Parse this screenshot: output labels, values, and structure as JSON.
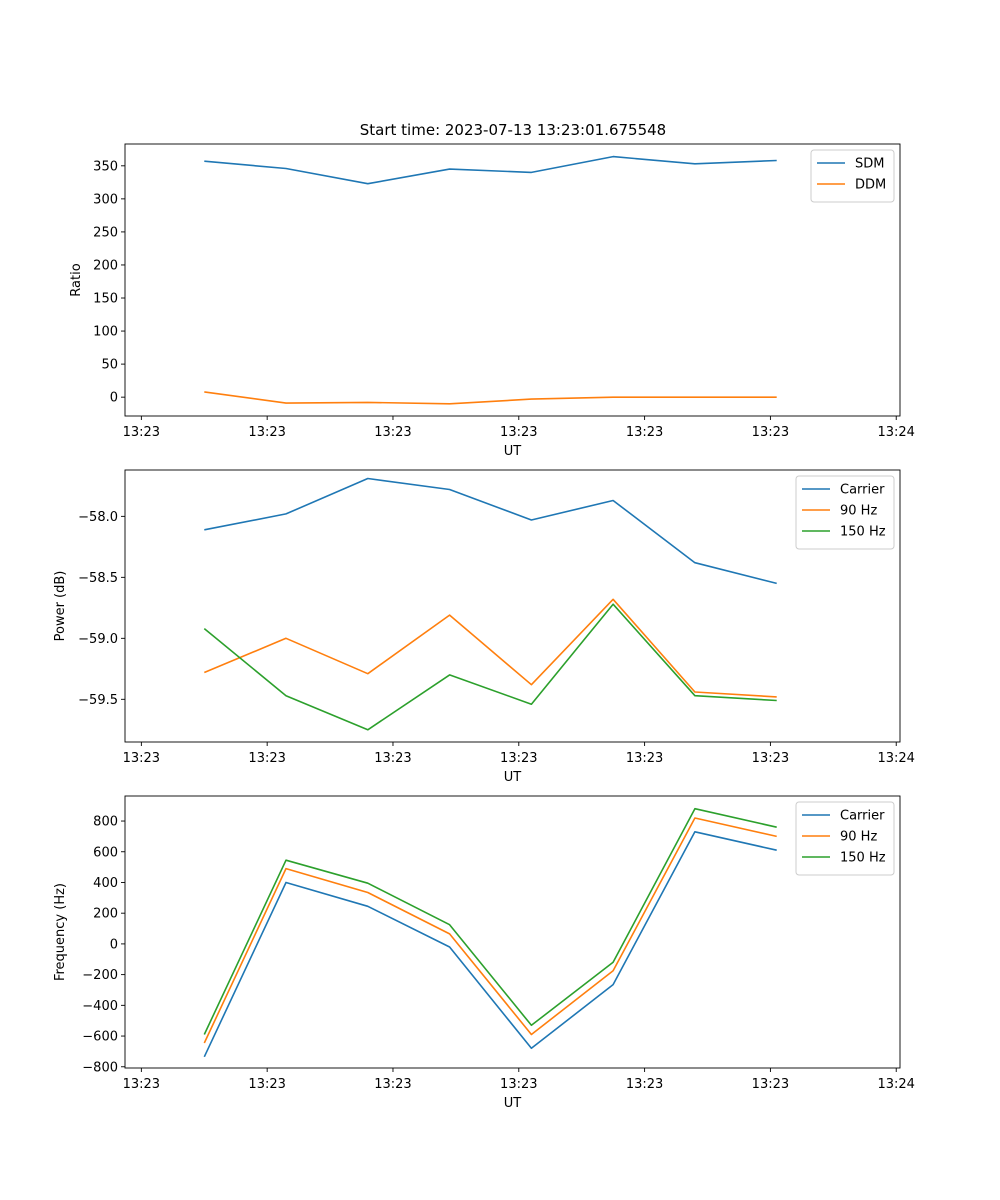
{
  "title": "Start time: 2023-07-13 13:23:01.675548",
  "colors": {
    "blue": "#1f77b4",
    "orange": "#ff7f0e",
    "green": "#2ca02c"
  },
  "chart_data": [
    {
      "type": "line",
      "title": "Start time: 2023-07-13 13:23:01.675548",
      "xlabel": "UT",
      "ylabel": "Ratio",
      "x_ticks": [
        0,
        1,
        2,
        3,
        4,
        5,
        6
      ],
      "x_tick_labels": [
        "13:23",
        "13:23",
        "13:23",
        "13:23",
        "13:23",
        "13:23",
        "13:24"
      ],
      "xlim": [
        -0.13,
        6.03
      ],
      "x": [
        0.5,
        1.15,
        1.8,
        2.45,
        3.1,
        3.75,
        4.4,
        5.05
      ],
      "ylim": [
        -28.5,
        383
      ],
      "y_ticks": [
        0,
        50,
        100,
        150,
        200,
        250,
        300,
        350
      ],
      "y_tick_labels": [
        "0",
        "50",
        "100",
        "150",
        "200",
        "250",
        "300",
        "350"
      ],
      "legend_position": "upper right",
      "series": [
        {
          "name": "SDM",
          "color": "#1f77b4",
          "values": [
            357,
            346,
            323,
            345,
            340,
            364,
            353,
            358
          ]
        },
        {
          "name": "DDM",
          "color": "#ff7f0e",
          "values": [
            8,
            -9,
            -8,
            -10,
            -3,
            0,
            0,
            0
          ]
        }
      ]
    },
    {
      "type": "line",
      "title": "",
      "xlabel": "UT",
      "ylabel": "Power (dB)",
      "x_ticks": [
        0,
        1,
        2,
        3,
        4,
        5,
        6
      ],
      "x_tick_labels": [
        "13:23",
        "13:23",
        "13:23",
        "13:23",
        "13:23",
        "13:23",
        "13:24"
      ],
      "xlim": [
        -0.13,
        6.03
      ],
      "x": [
        0.5,
        1.15,
        1.8,
        2.45,
        3.1,
        3.75,
        4.4,
        5.05
      ],
      "ylim": [
        -59.85,
        -57.62
      ],
      "y_ticks": [
        -59.5,
        -59.0,
        -58.5,
        -58.0
      ],
      "y_tick_labels": [
        "−59.5",
        "−59.0",
        "−58.5",
        "−58.0"
      ],
      "legend_position": "upper right",
      "series": [
        {
          "name": "Carrier",
          "color": "#1f77b4",
          "values": [
            -58.11,
            -57.98,
            -57.69,
            -57.78,
            -58.03,
            -57.87,
            -58.38,
            -58.55
          ]
        },
        {
          "name": "90 Hz",
          "color": "#ff7f0e",
          "values": [
            -59.28,
            -59.0,
            -59.29,
            -58.81,
            -59.38,
            -58.68,
            -59.44,
            -59.48
          ]
        },
        {
          "name": "150 Hz",
          "color": "#2ca02c",
          "values": [
            -58.92,
            -59.47,
            -59.75,
            -59.3,
            -59.54,
            -58.72,
            -59.47,
            -59.51
          ]
        }
      ]
    },
    {
      "type": "line",
      "title": "",
      "xlabel": "UT",
      "ylabel": "Frequency (Hz)",
      "x_ticks": [
        0,
        1,
        2,
        3,
        4,
        5,
        6
      ],
      "x_tick_labels": [
        "13:23",
        "13:23",
        "13:23",
        "13:23",
        "13:23",
        "13:23",
        "13:24"
      ],
      "xlim": [
        -0.13,
        6.03
      ],
      "x": [
        0.5,
        1.15,
        1.8,
        2.45,
        3.1,
        3.75,
        4.4,
        5.05
      ],
      "ylim": [
        -808,
        963
      ],
      "y_ticks": [
        -800,
        -600,
        -400,
        -200,
        0,
        200,
        400,
        600,
        800
      ],
      "y_tick_labels": [
        "−800",
        "−600",
        "−400",
        "−200",
        "0",
        "200",
        "400",
        "600",
        "800"
      ],
      "legend_position": "upper right",
      "series": [
        {
          "name": "Carrier",
          "color": "#1f77b4",
          "values": [
            -735,
            400,
            245,
            -20,
            -680,
            -265,
            730,
            610
          ]
        },
        {
          "name": "90 Hz",
          "color": "#ff7f0e",
          "values": [
            -645,
            490,
            335,
            65,
            -590,
            -175,
            820,
            700
          ]
        },
        {
          "name": "150 Hz",
          "color": "#2ca02c",
          "values": [
            -590,
            545,
            395,
            125,
            -530,
            -120,
            880,
            760
          ]
        }
      ]
    }
  ]
}
